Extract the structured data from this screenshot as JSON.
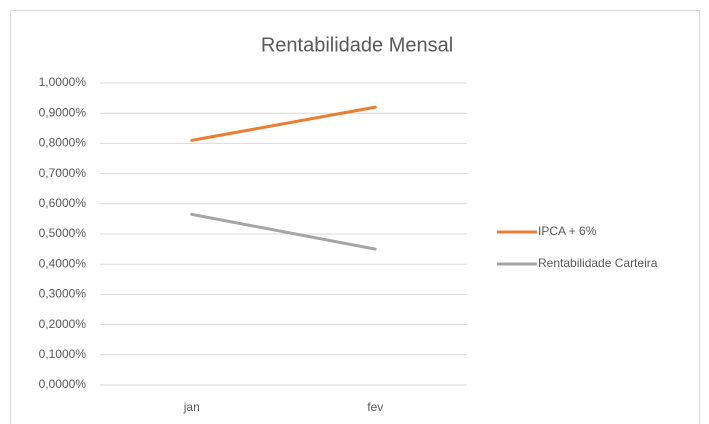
{
  "chart_data": {
    "type": "line",
    "title": "Rentabilidade Mensal",
    "categories": [
      "jan",
      "fev"
    ],
    "series": [
      {
        "name": "IPCA + 6%",
        "color": "#ed7d31",
        "values": [
          0.81,
          0.92
        ]
      },
      {
        "name": "Rentabilidade Carteira",
        "color": "#a5a5a5",
        "values": [
          0.565,
          0.45
        ]
      }
    ],
    "ylim": [
      0,
      1
    ],
    "yticks": [
      {
        "value": 0,
        "label": "0,0000%"
      },
      {
        "value": 0.1,
        "label": "0,1000%"
      },
      {
        "value": 0.2,
        "label": "0,2000%"
      },
      {
        "value": 0.3,
        "label": "0,3000%"
      },
      {
        "value": 0.4,
        "label": "0,4000%"
      },
      {
        "value": 0.5,
        "label": "0,5000%"
      },
      {
        "value": 0.6,
        "label": "0,6000%"
      },
      {
        "value": 0.7,
        "label": "0,7000%"
      },
      {
        "value": 0.8,
        "label": "0,8000%"
      },
      {
        "value": 0.9,
        "label": "0,9000%"
      },
      {
        "value": 1,
        "label": "1,0000%"
      }
    ],
    "grid": true,
    "legend": "right"
  }
}
